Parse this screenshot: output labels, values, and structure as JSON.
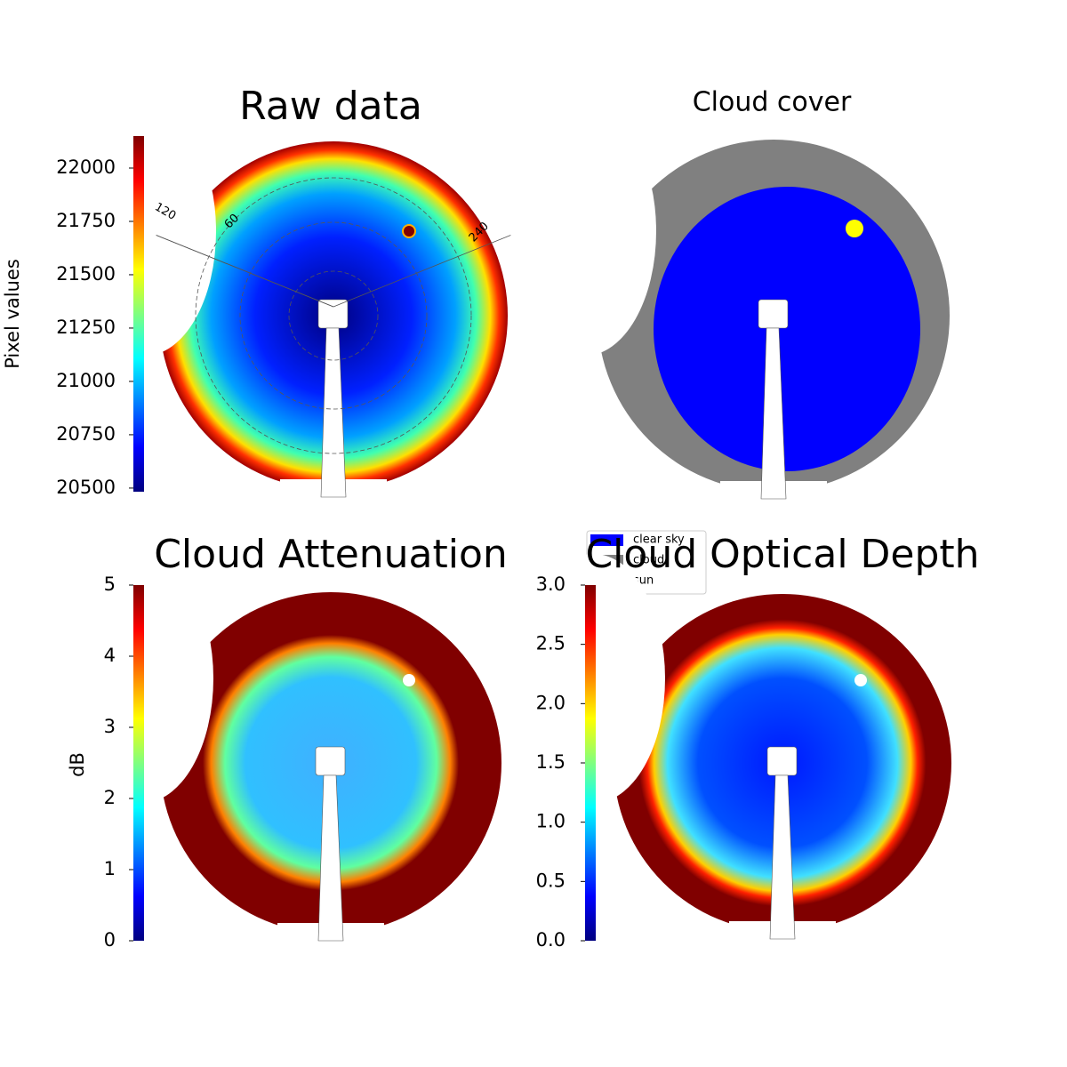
{
  "chart_data": [
    {
      "type": "image",
      "title": "Raw data",
      "colormap": "jet",
      "ylabel": "Pixel values",
      "ylim": [
        20483,
        22150
      ],
      "yticks": [
        20500,
        20750,
        21000,
        21250,
        21500,
        21750,
        22000
      ],
      "polar_labels": [
        "120",
        "60",
        "240"
      ]
    },
    {
      "type": "categorical-image",
      "title": "Cloud cover",
      "legend": [
        {
          "name": "clear sky",
          "color": "#0000ff"
        },
        {
          "name": "cloud",
          "color": "#808080"
        },
        {
          "name": "sun",
          "color": "#ffff00"
        }
      ]
    },
    {
      "type": "image",
      "title": "Cloud Attenuation",
      "colormap": "jet",
      "ylabel": "dB",
      "ylim": [
        0,
        5
      ],
      "yticks": [
        0,
        1,
        2,
        3,
        4,
        5
      ]
    },
    {
      "type": "image",
      "title": "Cloud Optical Depth",
      "colormap": "jet",
      "ylim": [
        0,
        3
      ],
      "yticks": [
        {
          "value": 0,
          "label": "0.0"
        },
        {
          "value": 0.5,
          "label": "0.5"
        },
        {
          "value": 1,
          "label": "1.0"
        },
        {
          "value": 1.5,
          "label": "1.5"
        },
        {
          "value": 2,
          "label": "2.0"
        },
        {
          "value": 2.5,
          "label": "2.5"
        },
        {
          "value": 3,
          "label": "3.0"
        }
      ]
    }
  ]
}
